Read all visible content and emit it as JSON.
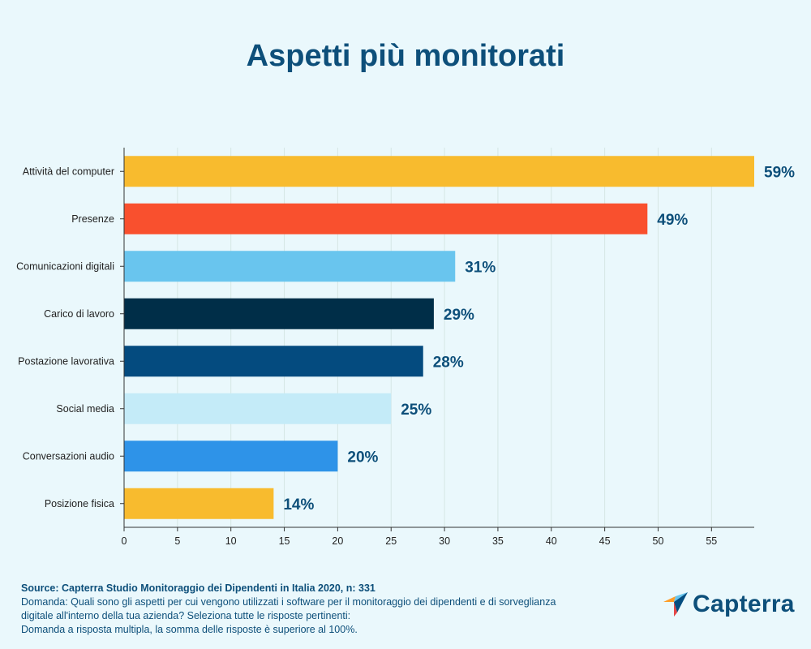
{
  "title": "Aspetti più monitorati",
  "chart_data": {
    "type": "bar",
    "orientation": "horizontal",
    "title": "Aspetti più monitorati",
    "categories": [
      "Attività del computer",
      "Presenze",
      "Comunicazioni digitali",
      "Carico di lavoro",
      "Postazione lavorativa",
      "Social media",
      "Conversazioni audio",
      "Posizione fisica"
    ],
    "values": [
      59,
      49,
      31,
      29,
      28,
      25,
      20,
      14
    ],
    "value_labels": [
      "59%",
      "49%",
      "31%",
      "29%",
      "28%",
      "25%",
      "20%",
      "14%"
    ],
    "colors": [
      "#f8bb2e",
      "#f9502e",
      "#69c5ee",
      "#002e48",
      "#044b7f",
      "#c4ebf8",
      "#2e93e8",
      "#f8bb2e"
    ],
    "xlim": [
      0,
      59
    ],
    "xticks": [
      0,
      5,
      10,
      15,
      20,
      25,
      30,
      35,
      40,
      45,
      50,
      55
    ],
    "grid": true,
    "xlabel": "",
    "ylabel": ""
  },
  "footer": {
    "source": "Source: Capterra Studio Monitoraggio dei Dipendenti in Italia 2020, n: 331",
    "question_1": "Domanda: Quali sono gli aspetti per cui vengono utilizzati i software per il monitoraggio dei dipendenti e di sorveglianza",
    "question_2": "digitale all'interno della tua azienda? Seleziona tutte le risposte pertinenti:",
    "note": "Domanda a risposta multipla, la somma delle risposte è superiore al 100%."
  },
  "logo": {
    "text": "Capterra",
    "colors": [
      "#ff9d28",
      "#68c5ed",
      "#044d80",
      "#e54747"
    ]
  }
}
